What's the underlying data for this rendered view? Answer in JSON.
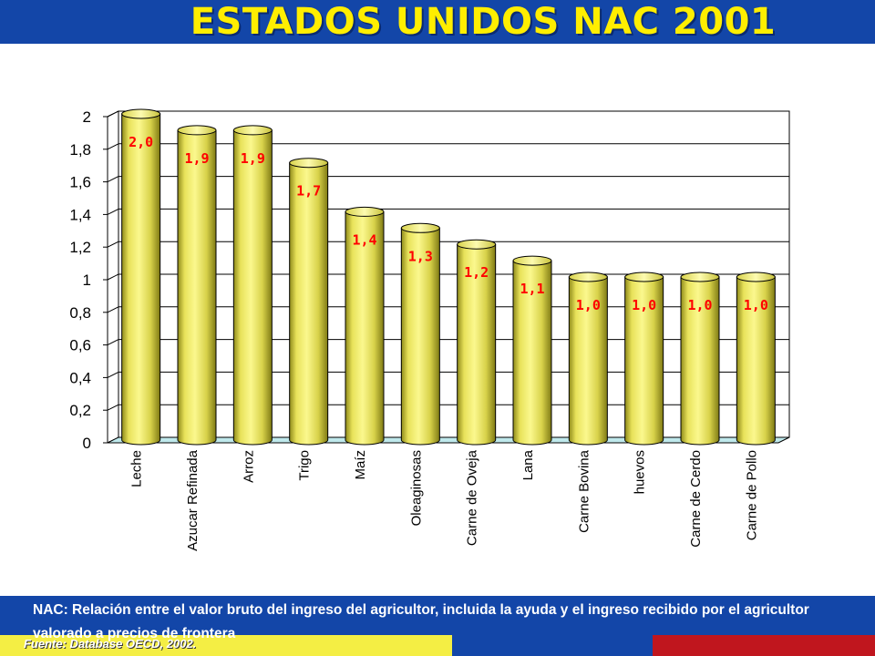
{
  "page": {
    "title": "ESTADOS UNIDOS NAC 2001",
    "footnote": "NAC:  Relación entre el valor bruto del ingreso del agricultor, incluida la ayuda y el ingreso recibido por el agricultor valorado a precios de frontera",
    "source": "Fuente: Database OECD, 2002."
  },
  "colors": {
    "header_blue": "#1346a8",
    "title_yellow": "#ffee00",
    "bar_fill": "#f4f07a",
    "bar_dark": "#a8a020",
    "data_label": "#ff0000",
    "floor": "#bfe9ec",
    "footer_yellow": "#f4ee44",
    "footer_red": "#c0161e"
  },
  "chart_data": {
    "type": "bar",
    "title": "ESTADOS UNIDOS NAC 2001",
    "xlabel": "",
    "ylabel": "",
    "ylim": [
      0,
      2
    ],
    "yticks": [
      "0",
      "0,2",
      "0,4",
      "0,6",
      "0,8",
      "1",
      "1,2",
      "1,4",
      "1,6",
      "1,8",
      "2"
    ],
    "grid": true,
    "legend": "none",
    "categories": [
      "Leche",
      "Azucar Refinada",
      "Arroz",
      "Trigo",
      "Maíz",
      "Oleaginosas",
      "Carne de Oveja",
      "Lana",
      "Carne Bovina",
      "huevos",
      "Carne de Cerdo",
      "Carne de Pollo"
    ],
    "values": [
      2.0,
      1.9,
      1.9,
      1.7,
      1.4,
      1.3,
      1.2,
      1.1,
      1.0,
      1.0,
      1.0,
      1.0
    ],
    "data_labels": [
      "2,0",
      "1,9",
      "1,9",
      "1,7",
      "1,4",
      "1,3",
      "1,2",
      "1,1",
      "1,0",
      "1,0",
      "1,0",
      "1,0"
    ]
  }
}
